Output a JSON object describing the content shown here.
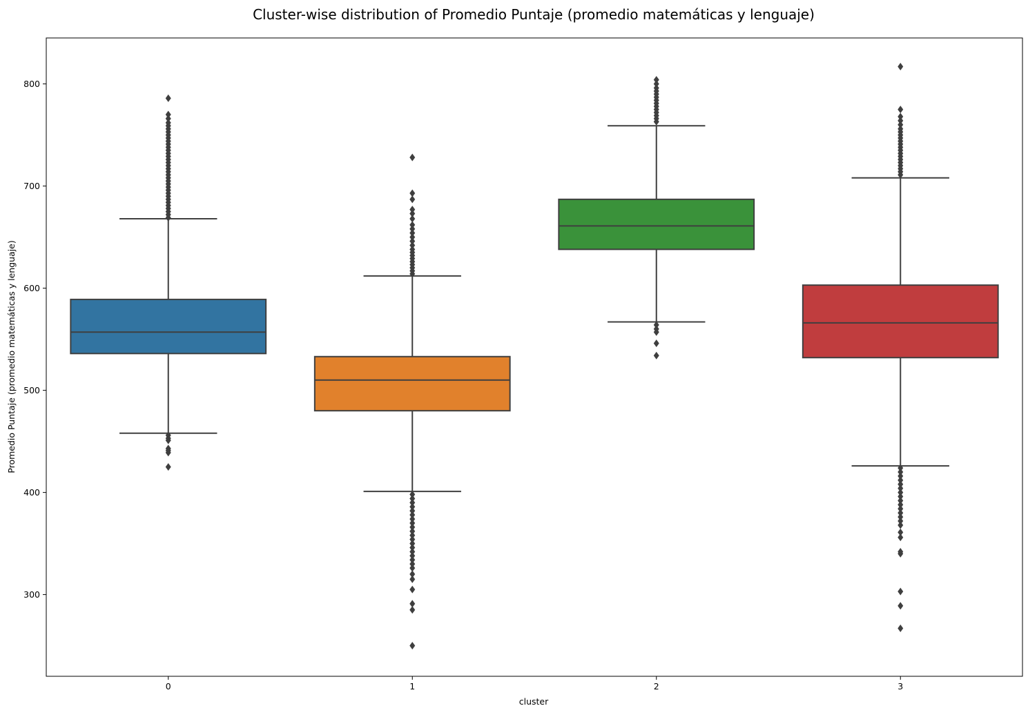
{
  "chart_data": {
    "type": "box",
    "title": "Cluster-wise distribution of Promedio Puntaje (promedio matemáticas y lenguaje)",
    "xlabel": "cluster",
    "ylabel": "Promedio Puntaje (promedio matemáticas y lenguaje)",
    "categories": [
      "0",
      "1",
      "2",
      "3"
    ],
    "ylim": [
      220,
      845
    ],
    "yticks": [
      300,
      400,
      500,
      600,
      700,
      800
    ],
    "grid": false,
    "legend": "none",
    "boxes": [
      {
        "category": "0",
        "color": "#3274a1",
        "q1": 536,
        "median": 557,
        "q3": 589,
        "whisker_low": 458,
        "whisker_high": 668,
        "outliers": [
          425,
          439,
          441,
          443,
          451,
          453,
          456,
          669,
          672,
          675,
          678,
          681,
          684,
          687,
          690,
          693,
          696,
          699,
          702,
          705,
          708,
          711,
          714,
          717,
          720,
          723,
          726,
          729,
          732,
          735,
          738,
          741,
          744,
          747,
          750,
          753,
          756,
          759,
          762,
          766,
          770,
          786
        ]
      },
      {
        "category": "1",
        "color": "#e1812c",
        "q1": 480,
        "median": 510,
        "q3": 533,
        "whisker_low": 401,
        "whisker_high": 612,
        "outliers": [
          250,
          285,
          291,
          305,
          315,
          320,
          326,
          330,
          334,
          338,
          342,
          346,
          350,
          354,
          358,
          362,
          366,
          370,
          374,
          378,
          382,
          386,
          390,
          394,
          398,
          614,
          617,
          620,
          623,
          626,
          629,
          632,
          635,
          638,
          642,
          646,
          650,
          654,
          658,
          662,
          668,
          673,
          677,
          687,
          693,
          728
        ]
      },
      {
        "category": "2",
        "color": "#3a923a",
        "q1": 638,
        "median": 661,
        "q3": 687,
        "whisker_low": 567,
        "whisker_high": 759,
        "outliers": [
          534,
          546,
          557,
          560,
          564,
          763,
          766,
          769,
          772,
          775,
          778,
          781,
          784,
          787,
          790,
          793,
          796,
          800,
          804
        ]
      },
      {
        "category": "3",
        "color": "#c03d3e",
        "q1": 532,
        "median": 566,
        "q3": 603,
        "whisker_low": 426,
        "whisker_high": 708,
        "outliers": [
          267,
          289,
          303,
          340,
          342,
          356,
          361,
          368,
          372,
          376,
          380,
          384,
          388,
          392,
          396,
          400,
          404,
          408,
          412,
          416,
          420,
          424,
          711,
          714,
          717,
          720,
          723,
          726,
          729,
          732,
          735,
          738,
          741,
          744,
          747,
          750,
          753,
          756,
          760,
          764,
          768,
          775,
          817
        ]
      }
    ]
  }
}
